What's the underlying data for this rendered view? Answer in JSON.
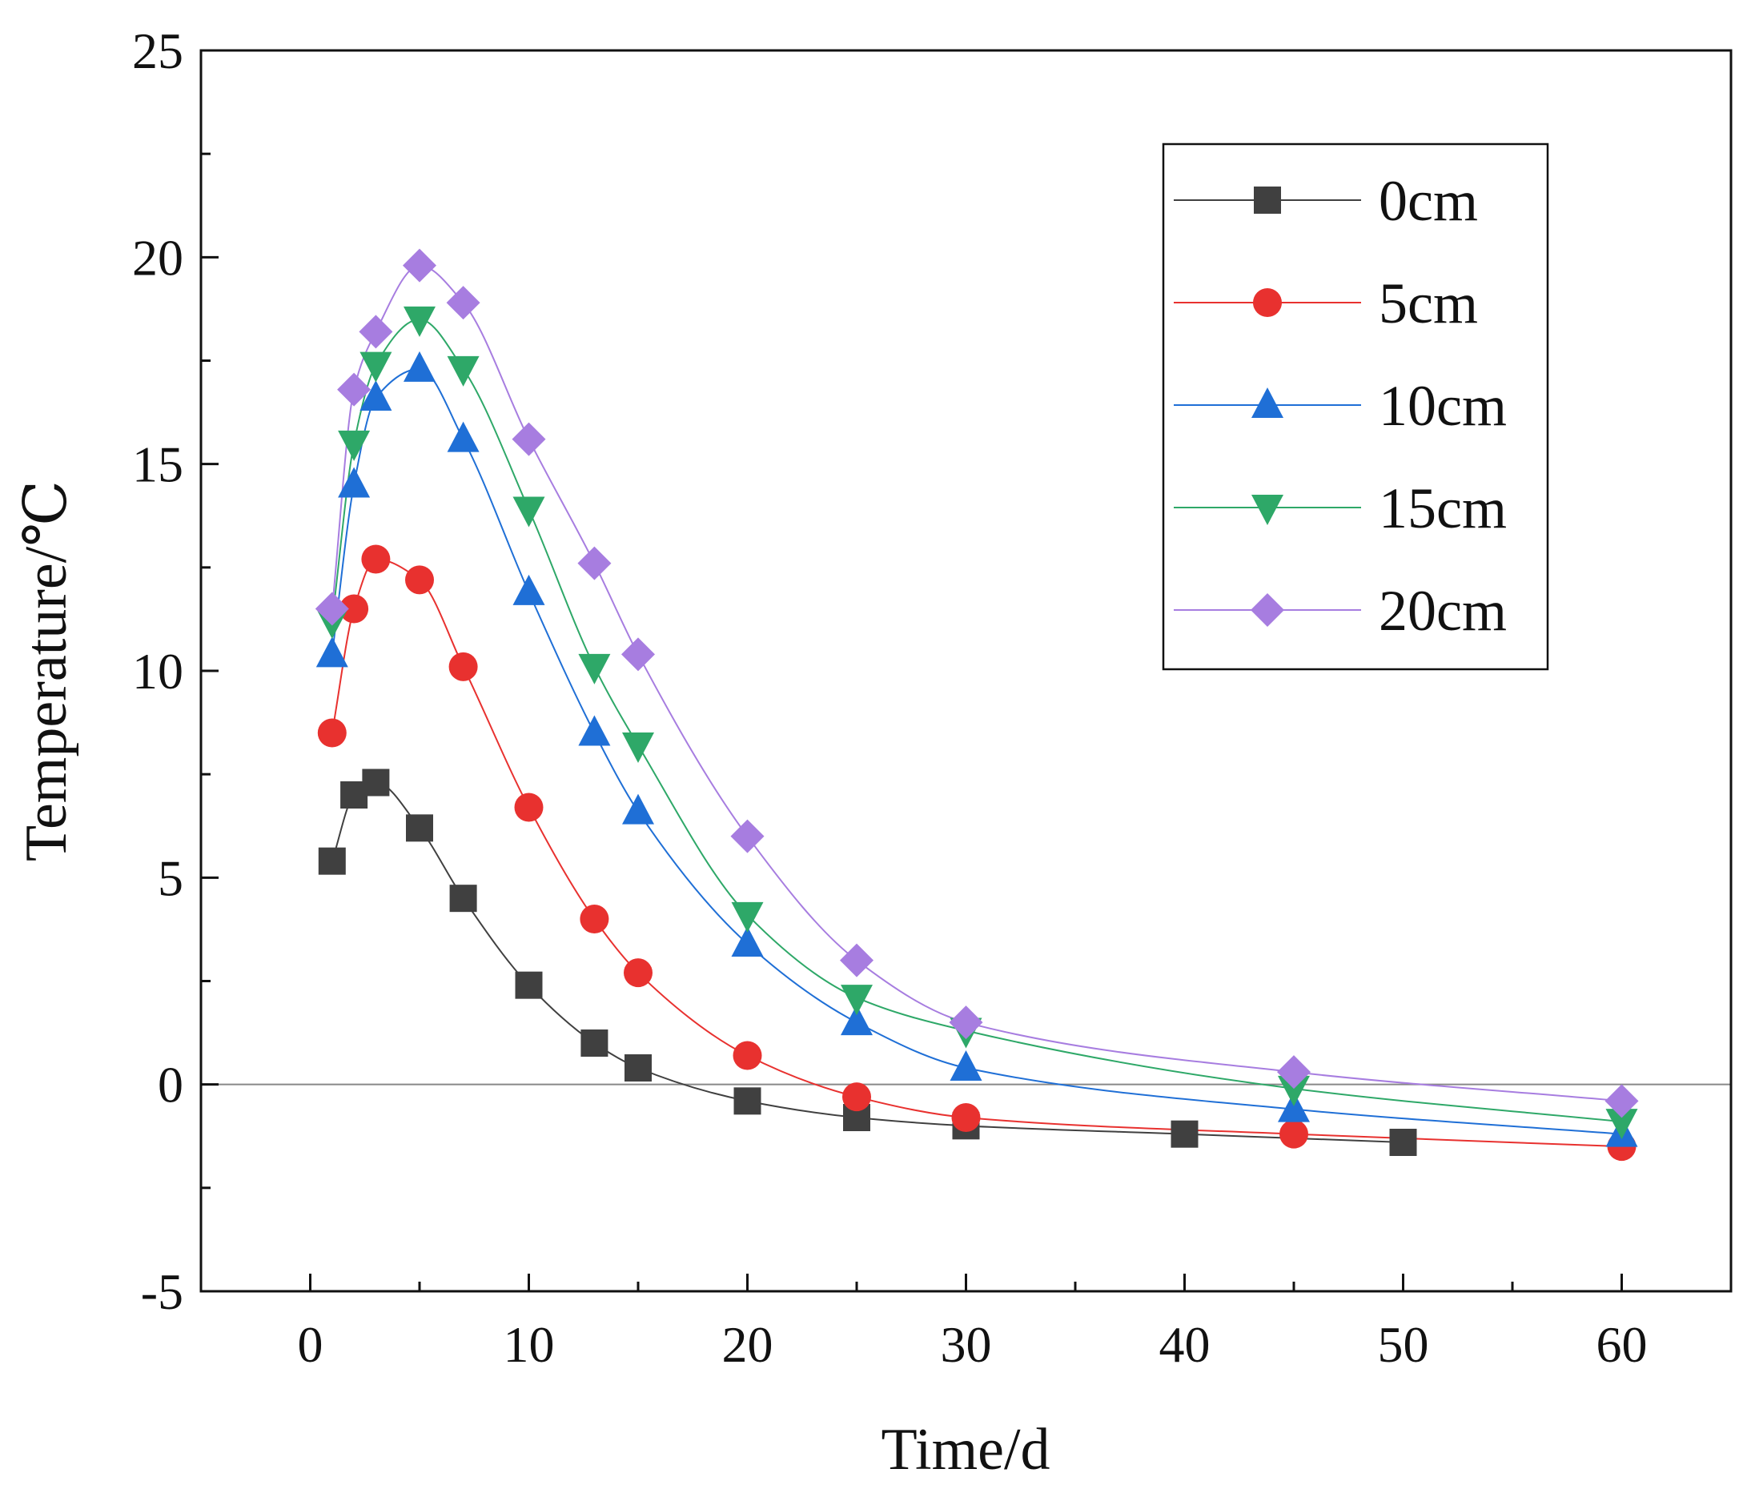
{
  "chart_data": {
    "type": "line",
    "title": "",
    "xlabel": "Time/d",
    "ylabel": "Temperature/℃",
    "xlim": [
      -5,
      65
    ],
    "ylim": [
      -5,
      25
    ],
    "xticks": [
      0,
      10,
      20,
      30,
      40,
      50,
      60
    ],
    "yticks": [
      -5,
      0,
      5,
      10,
      15,
      20,
      25
    ],
    "xtick_labels": [
      "0",
      "10",
      "20",
      "30",
      "40",
      "50",
      "60"
    ],
    "ytick_labels": [
      "-5",
      "0",
      "5",
      "10",
      "15",
      "20",
      "25"
    ],
    "zero_line": true,
    "grid": false,
    "legend_position": "top-right",
    "series": [
      {
        "name": "0cm",
        "color": "#404040",
        "marker": "square",
        "x": [
          1,
          2,
          3,
          5,
          7,
          10,
          13,
          15,
          20,
          25,
          30,
          40,
          50
        ],
        "y": [
          5.4,
          7.0,
          7.3,
          6.2,
          4.5,
          2.4,
          1.0,
          0.4,
          -0.4,
          -0.8,
          -1.0,
          -1.2,
          -1.4
        ]
      },
      {
        "name": "5cm",
        "color": "#e8312f",
        "marker": "circle",
        "x": [
          1,
          2,
          3,
          5,
          7,
          10,
          13,
          15,
          20,
          25,
          30,
          45,
          60
        ],
        "y": [
          8.5,
          11.5,
          12.7,
          12.2,
          10.1,
          6.7,
          4.0,
          2.7,
          0.7,
          -0.3,
          -0.8,
          -1.2,
          -1.5
        ]
      },
      {
        "name": "10cm",
        "color": "#1f6fd6",
        "marker": "triangle-up",
        "x": [
          1,
          2,
          3,
          5,
          7,
          10,
          13,
          15,
          20,
          25,
          30,
          45,
          60
        ],
        "y": [
          10.4,
          14.5,
          16.6,
          17.3,
          15.6,
          11.9,
          8.5,
          6.6,
          3.4,
          1.5,
          0.4,
          -0.6,
          -1.2
        ]
      },
      {
        "name": "15cm",
        "color": "#2ea868",
        "marker": "triangle-down",
        "x": [
          1,
          2,
          3,
          5,
          7,
          10,
          13,
          15,
          20,
          25,
          30,
          45,
          60
        ],
        "y": [
          11.2,
          15.5,
          17.4,
          18.5,
          17.3,
          13.9,
          10.1,
          8.2,
          4.1,
          2.1,
          1.3,
          -0.1,
          -0.9
        ]
      },
      {
        "name": "20cm",
        "color": "#a77de0",
        "marker": "diamond",
        "x": [
          1,
          2,
          3,
          5,
          7,
          10,
          13,
          15,
          20,
          25,
          30,
          45,
          60
        ],
        "y": [
          11.5,
          16.8,
          18.2,
          19.8,
          18.9,
          15.6,
          12.6,
          10.4,
          6.0,
          3.0,
          1.5,
          0.3,
          -0.4
        ]
      }
    ]
  }
}
